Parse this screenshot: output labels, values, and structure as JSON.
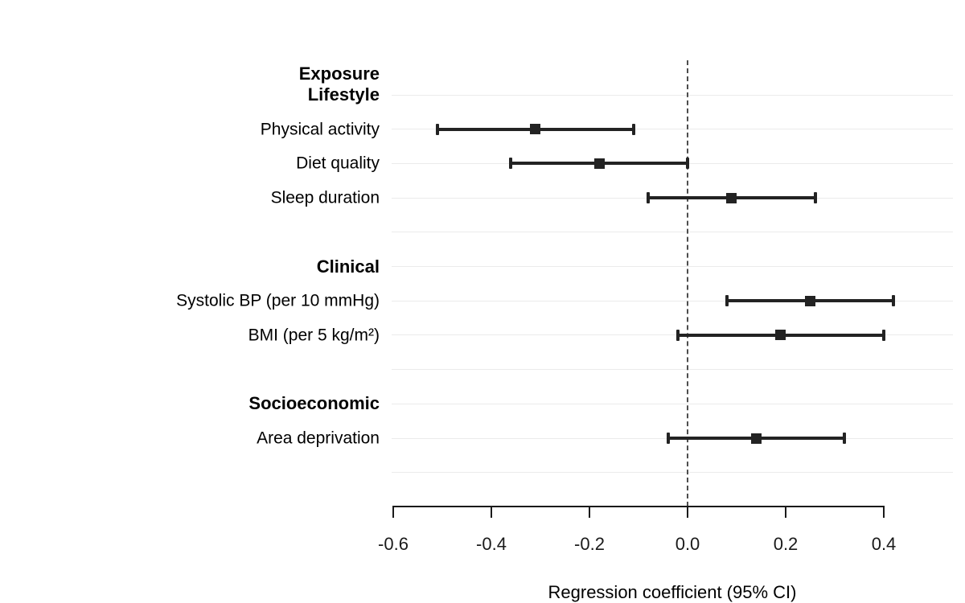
{
  "chart_data": {
    "type": "scatter",
    "subtype": "forest_plot",
    "header_label": "Exposure",
    "xlabel": "Regression coefficient (95% CI)",
    "x_ticks": [
      -0.6,
      -0.4,
      -0.2,
      0.0,
      0.2,
      0.4
    ],
    "x_tick_labels": [
      "-0.6",
      "-0.4",
      "-0.2",
      "0.0",
      "0.2",
      "0.4"
    ],
    "x_axis_range": [
      -0.6,
      0.4
    ],
    "reference_line_x": 0.0,
    "grid": "horizontal_rows_only",
    "legend": "none",
    "rows": [
      {
        "type": "group",
        "label": "Lifestyle"
      },
      {
        "type": "item",
        "label": "Physical activity",
        "estimate": -0.31,
        "ci_lower": -0.51,
        "ci_upper": -0.11
      },
      {
        "type": "item",
        "label": "Diet quality",
        "estimate": -0.18,
        "ci_lower": -0.36,
        "ci_upper": 0.0
      },
      {
        "type": "item",
        "label": "Sleep duration",
        "estimate": 0.09,
        "ci_lower": -0.08,
        "ci_upper": 0.26
      },
      {
        "type": "spacer",
        "label": ""
      },
      {
        "type": "group",
        "label": "Clinical"
      },
      {
        "type": "item",
        "label": "Systolic BP (per 10 mmHg)",
        "estimate": 0.25,
        "ci_lower": 0.08,
        "ci_upper": 0.42
      },
      {
        "type": "item",
        "label": "BMI (per 5 kg/m²)",
        "estimate": 0.19,
        "ci_lower": -0.02,
        "ci_upper": 0.4
      },
      {
        "type": "spacer",
        "label": ""
      },
      {
        "type": "group",
        "label": "Socioeconomic"
      },
      {
        "type": "item",
        "label": "Area deprivation",
        "estimate": 0.14,
        "ci_lower": -0.04,
        "ci_upper": 0.32
      },
      {
        "type": "spacer",
        "label": ""
      }
    ],
    "colors": {
      "marker": "#232323",
      "ci_line": "#232323",
      "reference_line": "#4d4d4d",
      "gridline": "#ebebeb",
      "axis_line": "#1a1a1a",
      "text": "#000000",
      "background": "#ffffff"
    }
  }
}
